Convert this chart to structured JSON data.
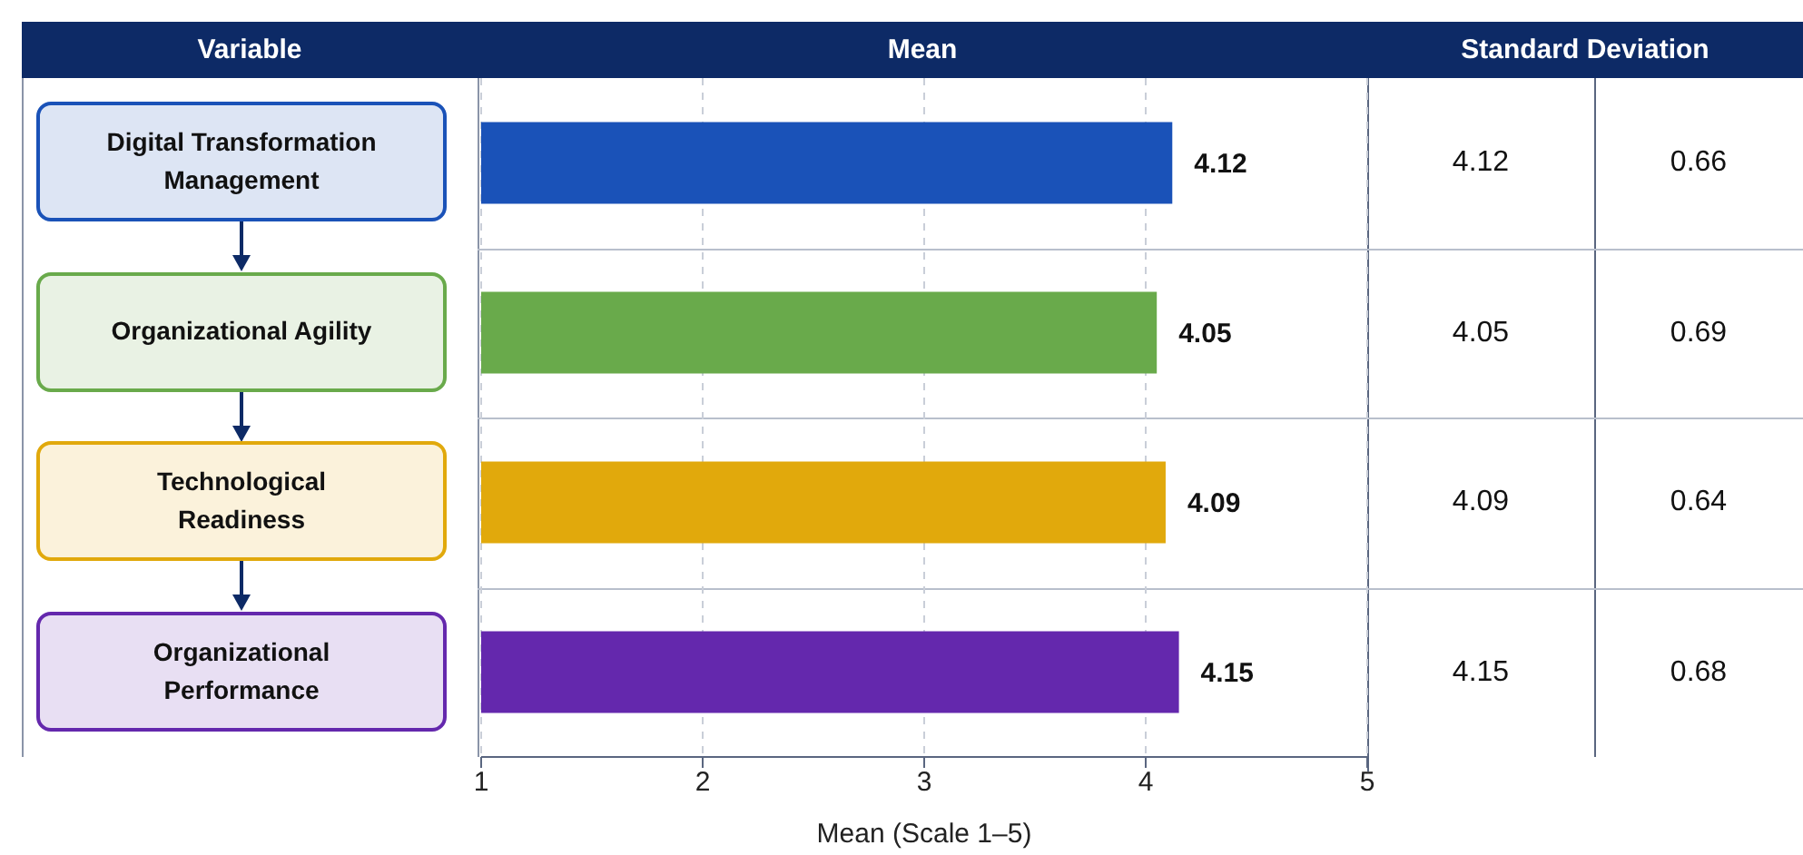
{
  "chart_data": {
    "type": "bar",
    "orientation": "horizontal",
    "title": "Mean",
    "xlabel": "Mean (Scale 1–5)",
    "categories": [
      "Digital Transformation Management",
      "Organizational Agility",
      "Technological Readiness",
      "Organizational Performance"
    ],
    "values": [
      4.12,
      4.05,
      4.09,
      4.15
    ],
    "colors": [
      "#1a52b8",
      "#69aa4b",
      "#e1a90c",
      "#6428ad"
    ],
    "value_labels": [
      "4.12",
      "4.05",
      "4.09",
      "4.15"
    ],
    "xlim": [
      1,
      5
    ],
    "xticks": [
      1,
      2,
      3,
      4,
      5
    ],
    "grid": "x",
    "annotations": [
      "Variable",
      "Standard Deviation",
      "4.12",
      "0.66",
      "4.05",
      "0.69",
      "4.09",
      "0.64",
      "4.15",
      "0.68"
    ]
  }
}
